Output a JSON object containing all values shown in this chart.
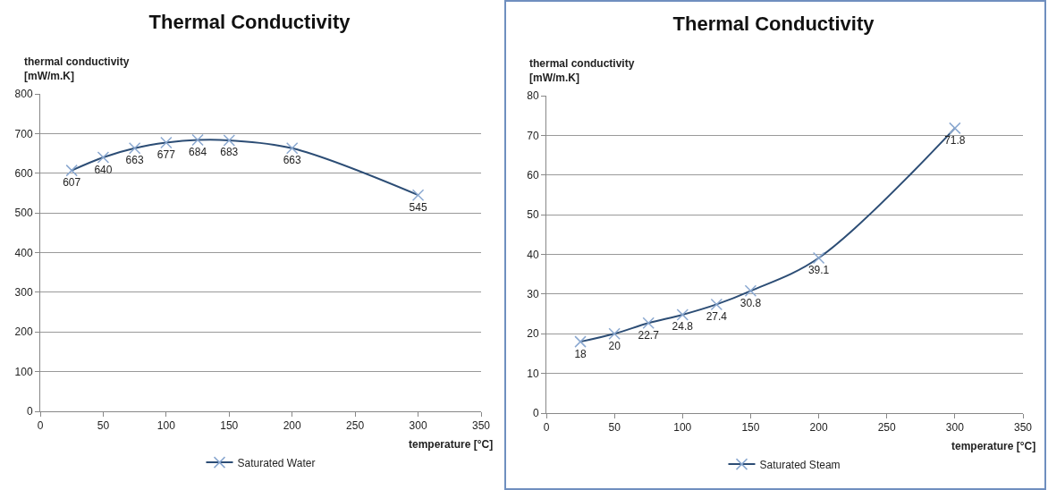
{
  "chart_data": [
    {
      "type": "line",
      "title": "Thermal Conductivity",
      "xlabel": "temperature [°C]",
      "ylabel": "thermal conductivity\n[mW/m.K]",
      "x": [
        25,
        50,
        75,
        100,
        125,
        150,
        200,
        300
      ],
      "series": [
        {
          "name": "Saturated Water",
          "color": "#2c4d75",
          "values": [
            607,
            640,
            663,
            677,
            684,
            683,
            663,
            545
          ]
        }
      ],
      "xlim": [
        0,
        350
      ],
      "xticks": [
        0,
        50,
        100,
        150,
        200,
        250,
        300,
        350
      ],
      "ylim": [
        0,
        800
      ],
      "yticks": [
        0,
        100,
        200,
        300,
        400,
        500,
        600,
        700,
        800
      ],
      "grid": "y",
      "legend": "bottom",
      "marker": "cross",
      "data_labels": true
    },
    {
      "type": "line",
      "title": "Thermal Conductivity",
      "xlabel": "temperature [°C]",
      "ylabel": "thermal conductivity\n[mW/m.K]",
      "x": [
        25,
        50,
        75,
        100,
        125,
        150,
        200,
        300
      ],
      "series": [
        {
          "name": "Saturated Steam",
          "color": "#2c4d75",
          "values": [
            18,
            20,
            22.7,
            24.8,
            27.4,
            30.8,
            39.1,
            71.8
          ]
        }
      ],
      "xlim": [
        0,
        350
      ],
      "xticks": [
        0,
        50,
        100,
        150,
        200,
        250,
        300,
        350
      ],
      "ylim": [
        0,
        80
      ],
      "yticks": [
        0,
        10,
        20,
        30,
        40,
        50,
        60,
        70,
        80
      ],
      "grid": "y",
      "legend": "bottom",
      "marker": "cross",
      "data_labels": true
    }
  ]
}
